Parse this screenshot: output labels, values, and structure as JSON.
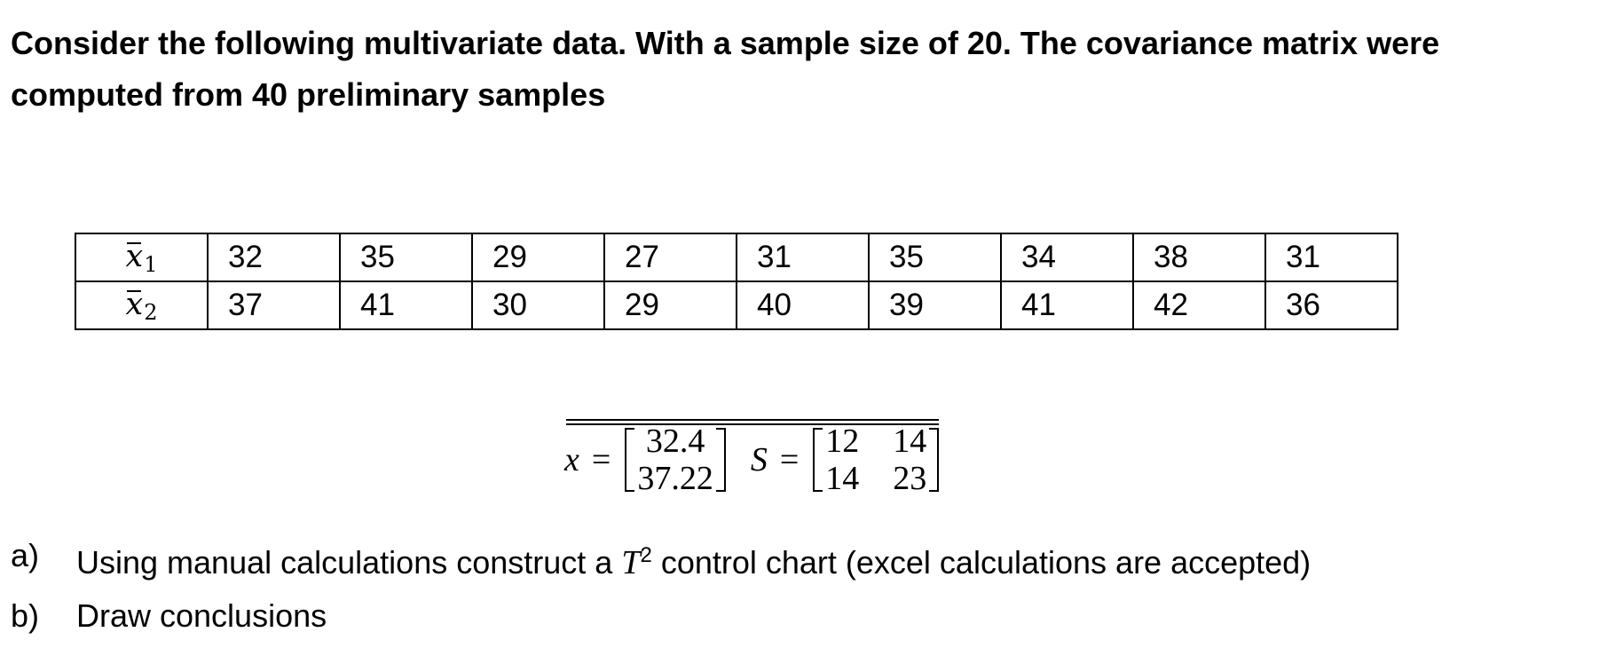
{
  "heading": "Consider the following multivariate data. With a sample size of 20. The covariance matrix were computed from 40 preliminary samples",
  "table": {
    "rows": [
      {
        "symbol": "x",
        "subscript": "1",
        "values": [
          "32",
          "35",
          "29",
          "27",
          "31",
          "35",
          "34",
          "38",
          "31"
        ]
      },
      {
        "symbol": "x",
        "subscript": "2",
        "values": [
          "37",
          "41",
          "30",
          "29",
          "40",
          "39",
          "41",
          "42",
          "36"
        ]
      }
    ]
  },
  "formula": {
    "xbarbar_symbol": "x",
    "equals": "=",
    "mean_vector": [
      "32.4",
      "37.22"
    ],
    "s_symbol": "S",
    "covariance": [
      [
        "12",
        "14"
      ],
      [
        "14",
        "23"
      ]
    ]
  },
  "questions": [
    {
      "label": "a)",
      "before": "Using manual calculations construct a ",
      "math": "T",
      "sup": "2",
      "after": " control chart (excel calculations are accepted)"
    },
    {
      "label": "b)",
      "before": "Draw conclusions",
      "math": "",
      "sup": "",
      "after": ""
    }
  ]
}
